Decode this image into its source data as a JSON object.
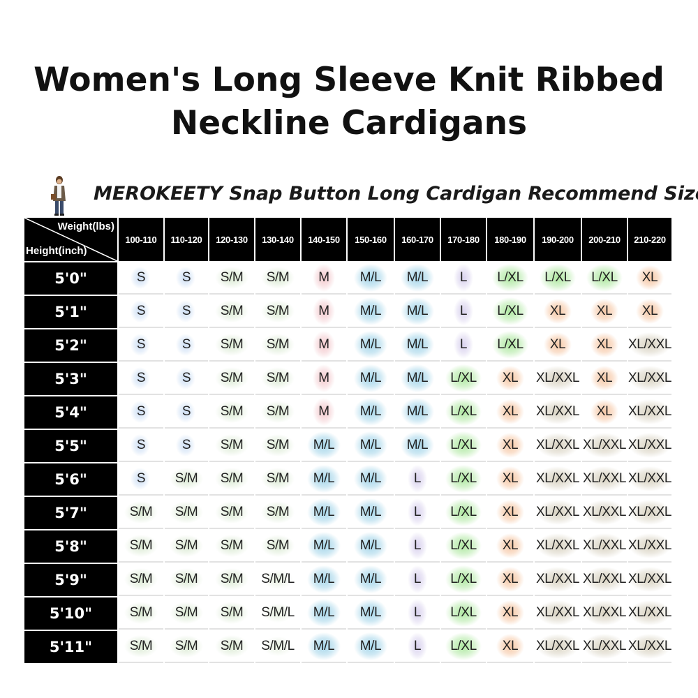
{
  "page": {
    "title_line1": "Women's Long Sleeve Knit Ribbed",
    "title_line2": "Neckline Cardigans"
  },
  "chart": {
    "title": "MEROKEETY Snap Button Long Cardigan Recommend Size",
    "corner_weight_label": "Weight(lbs)",
    "corner_height_label": "Height(inch)",
    "figure_icon": "woman-model-icon"
  },
  "weights": [
    "100-110",
    "110-120",
    "120-130",
    "130-140",
    "140-150",
    "150-160",
    "160-170",
    "170-180",
    "180-190",
    "190-200",
    "200-210",
    "210-220"
  ],
  "rows": [
    {
      "height": "5'0\"",
      "sizes": [
        "S",
        "S",
        "S/M",
        "S/M",
        "M",
        "M/L",
        "M/L",
        "L",
        "L/XL",
        "L/XL",
        "L/XL",
        "XL"
      ]
    },
    {
      "height": "5'1\"",
      "sizes": [
        "S",
        "S",
        "S/M",
        "S/M",
        "M",
        "M/L",
        "M/L",
        "L",
        "L/XL",
        "XL",
        "XL",
        "XL"
      ]
    },
    {
      "height": "5'2\"",
      "sizes": [
        "S",
        "S",
        "S/M",
        "S/M",
        "M",
        "M/L",
        "M/L",
        "L",
        "L/XL",
        "XL",
        "XL",
        "XL/XXL"
      ]
    },
    {
      "height": "5'3\"",
      "sizes": [
        "S",
        "S",
        "S/M",
        "S/M",
        "M",
        "M/L",
        "M/L",
        "L/XL",
        "XL",
        "XL/XXL",
        "XL",
        "XL/XXL"
      ]
    },
    {
      "height": "5'4\"",
      "sizes": [
        "S",
        "S",
        "S/M",
        "S/M",
        "M",
        "M/L",
        "M/L",
        "L/XL",
        "XL",
        "XL/XXL",
        "XL",
        "XL/XXL"
      ]
    },
    {
      "height": "5'5\"",
      "sizes": [
        "S",
        "S",
        "S/M",
        "S/M",
        "M/L",
        "M/L",
        "M/L",
        "L/XL",
        "XL",
        "XL/XXL",
        "XL/XXL",
        "XL/XXL"
      ]
    },
    {
      "height": "5'6\"",
      "sizes": [
        "S",
        "S/M",
        "S/M",
        "S/M",
        "M/L",
        "M/L",
        "L",
        "L/XL",
        "XL",
        "XL/XXL",
        "XL/XXL",
        "XL/XXL"
      ]
    },
    {
      "height": "5'7\"",
      "sizes": [
        "S/M",
        "S/M",
        "S/M",
        "S/M",
        "M/L",
        "M/L",
        "L",
        "L/XL",
        "XL",
        "XL/XXL",
        "XL/XXL",
        "XL/XXL"
      ]
    },
    {
      "height": "5'8\"",
      "sizes": [
        "S/M",
        "S/M",
        "S/M",
        "S/M",
        "M/L",
        "M/L",
        "L",
        "L/XL",
        "XL",
        "XL/XXL",
        "XL/XXL",
        "XL/XXL"
      ]
    },
    {
      "height": "5'9\"",
      "sizes": [
        "S/M",
        "S/M",
        "S/M",
        "S/M/L",
        "M/L",
        "M/L",
        "L",
        "L/XL",
        "XL",
        "XL/XXL",
        "XL/XXL",
        "XL/XXL"
      ]
    },
    {
      "height": "5'10\"",
      "sizes": [
        "S/M",
        "S/M",
        "S/M",
        "S/M/L",
        "M/L",
        "M/L",
        "L",
        "L/XL",
        "XL",
        "XL/XXL",
        "XL/XXL",
        "XL/XXL"
      ]
    },
    {
      "height": "5'11\"",
      "sizes": [
        "S/M",
        "S/M",
        "S/M",
        "S/M/L",
        "M/L",
        "M/L",
        "L",
        "L/XL",
        "XL",
        "XL/XXL",
        "XL/XXL",
        "XL/XXL"
      ]
    }
  ],
  "size_colors": {
    "S": "#cfe0f5",
    "S/M": "#dbead3",
    "S/M/L": "#e6f0df",
    "M": "#f3c9cd",
    "M/L": "#a6d6ea",
    "L": "#d9d2ee",
    "L/XL": "#aee8a0",
    "XL": "#f6c8a6",
    "XL/XXL": "#d9d3c2"
  }
}
